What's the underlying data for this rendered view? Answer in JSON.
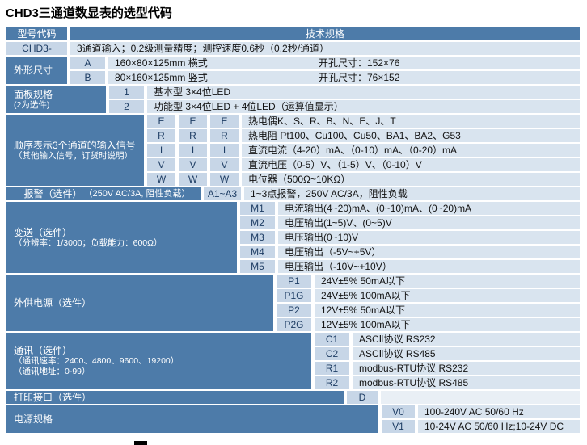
{
  "title": "CHD3三通道数显表的选型代码",
  "colors": {
    "header_blue": "#4d7ba9",
    "spec_row_bg": "#d9e4ef",
    "code_cell_bg": "#c7d6e7",
    "code_text": "#1d3c63"
  },
  "table": {
    "header": {
      "model_col": "型号代码",
      "spec_col": "技术规格"
    },
    "model_row": {
      "code": "CHD3-",
      "spec": "3通道输入；0.2级测量精度；测控速度0.6秒（0.2秒/通道）"
    },
    "sections": [
      {
        "name": "外形尺寸",
        "label_lines": [
          "外形尺寸"
        ],
        "rows": [
          {
            "codes": [
              "A"
            ],
            "spec": "160×80×125mm 横式",
            "spec2": "开孔尺寸：152×76"
          },
          {
            "codes": [
              "B"
            ],
            "spec": "80×160×125mm 竖式",
            "spec2": "开孔尺寸：76×152"
          }
        ]
      },
      {
        "name": "面板规格",
        "label_lines": [
          "面板规格",
          "(2为选件)"
        ],
        "rows": [
          {
            "codes": [
              "1"
            ],
            "spec": "基本型 3×4位LED"
          },
          {
            "codes": [
              "2"
            ],
            "spec": "功能型 3×4位LED + 4位LED（运算值显示）"
          }
        ]
      },
      {
        "name": "输入信号",
        "label_lines": [
          "顺序表示3个通道的输入信号",
          "（其他输入信号，订货时说明）"
        ],
        "rows": [
          {
            "codes": [
              "E",
              "E",
              "E"
            ],
            "spec": "热电偶K、S、R、B、N、E、J、T"
          },
          {
            "codes": [
              "R",
              "R",
              "R"
            ],
            "spec": "热电阻 Pt100、Cu100、Cu50、BA1、BA2、G53"
          },
          {
            "codes": [
              "I",
              "I",
              "I"
            ],
            "spec": "直流电流（4-20）mA、（0-10）mA、（0-20）mA"
          },
          {
            "codes": [
              "V",
              "V",
              "V"
            ],
            "spec": "直流电压（0-5）V、（1-5）V、（0-10）V"
          },
          {
            "codes": [
              "W",
              "W",
              "W"
            ],
            "spec": "电位器（500Ω~10KΩ）"
          }
        ]
      },
      {
        "name": "报警",
        "label_lines": [
          "报警（选件）",
          "（250V AC/3A, 阻性负载）"
        ],
        "rows": [
          {
            "codes": [
              "A1~A3"
            ],
            "spec": "1~3点报警，250V AC/3A，阻性负载"
          }
        ]
      },
      {
        "name": "变送",
        "label_lines": [
          "变送（选件）",
          "（分辨率：1/3000；负载能力：600Ω）"
        ],
        "rows": [
          {
            "codes": [
              "M1"
            ],
            "spec": "电流输出(4~20)mA、(0~10)mA、(0~20)mA"
          },
          {
            "codes": [
              "M2"
            ],
            "spec": "电压输出(1~5)V、(0~5)V"
          },
          {
            "codes": [
              "M3"
            ],
            "spec": "电压输出(0~10)V"
          },
          {
            "codes": [
              "M4"
            ],
            "spec": "电压输出（-5V~+5V）"
          },
          {
            "codes": [
              "M5"
            ],
            "spec": "电压输出（-10V~+10V）"
          }
        ]
      },
      {
        "name": "外供电源",
        "label_lines": [
          "外供电源（选件）"
        ],
        "rows": [
          {
            "codes": [
              "P1"
            ],
            "spec": "24V±5% 50mA以下"
          },
          {
            "codes": [
              "P1G"
            ],
            "spec": "24V±5% 100mA以下"
          },
          {
            "codes": [
              "P2"
            ],
            "spec": "12V±5% 50mA以下"
          },
          {
            "codes": [
              "P2G"
            ],
            "spec": "12V±5% 100mA以下"
          }
        ]
      },
      {
        "name": "通讯",
        "label_lines": [
          "通讯（选件）",
          "（通讯速率：2400、4800、9600、19200）",
          "（通讯地址：0-99）"
        ],
        "rows": [
          {
            "codes": [
              "C1"
            ],
            "spec": "ASCⅡ协议 RS232"
          },
          {
            "codes": [
              "C2"
            ],
            "spec": "ASCⅡ协议 RS485"
          },
          {
            "codes": [
              "R1"
            ],
            "spec": "modbus-RTU协议 RS232"
          },
          {
            "codes": [
              "R2"
            ],
            "spec": "modbus-RTU协议 RS485"
          }
        ]
      },
      {
        "name": "打印接口",
        "label_lines": [
          "打印接口（选件）"
        ],
        "rows": [
          {
            "codes": [
              "D"
            ],
            "spec": ""
          }
        ]
      },
      {
        "name": "电源规格",
        "label_lines": [
          "电源规格"
        ],
        "rows": [
          {
            "codes": [
              "V0"
            ],
            "spec": "100-240V AC 50/60 Hz"
          },
          {
            "codes": [
              "V1"
            ],
            "spec": "10-24V AC 50/60 Hz;10-24V DC"
          }
        ]
      }
    ]
  }
}
